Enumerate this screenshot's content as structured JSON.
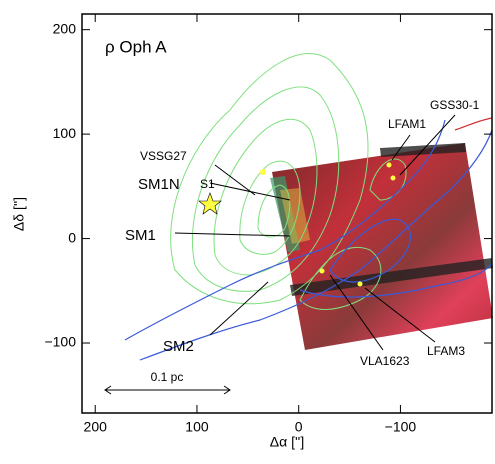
{
  "chart_data": {
    "type": "map",
    "title": "ρ Oph A",
    "x_label": "Δα ['']",
    "y_label": "Δδ ['']",
    "xlim": [
      213,
      -190
    ],
    "ylim": [
      -167,
      215
    ],
    "xticks": [
      200,
      100,
      0,
      {
        "value": -100,
        "label": "−100"
      }
    ],
    "yticks": [
      {
        "value": -100,
        "label": "−100"
      },
      0,
      100,
      200
    ],
    "annotations": [
      "VSSG27",
      "SM1N",
      "S1",
      "SM1",
      "SM2",
      "LFAM1",
      "GSS30-1",
      "VLA1623",
      "LFAM3"
    ],
    "scale_bar": "0.1 pc"
  }
}
